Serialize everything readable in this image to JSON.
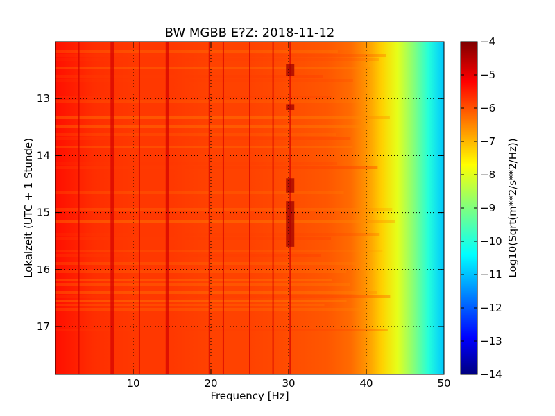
{
  "chart_data": {
    "type": "heatmap",
    "title": "BW MGBB E?Z: 2018-11-12",
    "xlabel": "Frequency [Hz]",
    "ylabel": "Lokalzeit (UTC + 1 Stunde)",
    "xlim": [
      0,
      50
    ],
    "ylim": [
      17.84,
      12.0
    ],
    "y_axis_inverted": true,
    "x_ticks": [
      10,
      20,
      30,
      40,
      50
    ],
    "y_ticks": [
      13,
      14,
      15,
      16,
      17
    ],
    "x_tick_labels": [
      "10",
      "20",
      "30",
      "40",
      "50"
    ],
    "y_tick_labels": [
      "13",
      "14",
      "15",
      "16",
      "17"
    ],
    "grid": true,
    "colorscale": "jet",
    "colorbar": {
      "label": "Log10(Sqrt(m**2/s**2/Hz))",
      "range": [
        -14,
        -4
      ],
      "ticks": [
        -4,
        -5,
        -6,
        -7,
        -8,
        -9,
        -10,
        -11,
        -12,
        -13,
        -14
      ],
      "tick_labels": [
        "−4",
        "−5",
        "−6",
        "−7",
        "−8",
        "−9",
        "−10",
        "−11",
        "−12",
        "−13",
        "−14"
      ]
    },
    "spectral_profile": {
      "frequency_hz": [
        0,
        5,
        10,
        15,
        20,
        25,
        30,
        35,
        38,
        40,
        42,
        44,
        46,
        48,
        50
      ],
      "level": [
        -5.4,
        -5.7,
        -5.8,
        -5.8,
        -5.9,
        -5.9,
        -6.0,
        -6.1,
        -6.3,
        -6.7,
        -7.3,
        -8.0,
        -8.9,
        -9.9,
        -10.8
      ]
    },
    "persistent_lines_hz": [
      3.0,
      7.3,
      10.8,
      14.4,
      19.8,
      21.6,
      25.0,
      28.0,
      30.2
    ],
    "transient_bursts": [
      {
        "frequency_hz": 30.2,
        "time_start": 12.4,
        "time_end": 12.6
      },
      {
        "frequency_hz": 30.2,
        "time_start": 13.1,
        "time_end": 13.2
      },
      {
        "frequency_hz": 30.2,
        "time_start": 14.4,
        "time_end": 14.65
      },
      {
        "frequency_hz": 30.2,
        "time_start": 14.8,
        "time_end": 15.6
      }
    ]
  }
}
